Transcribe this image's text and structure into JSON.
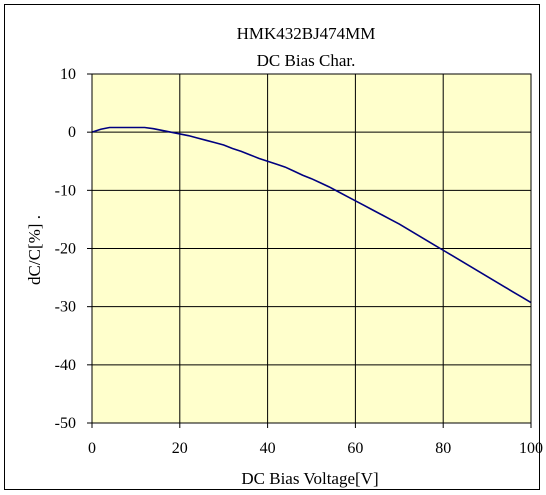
{
  "chart_data": {
    "type": "line",
    "title": "HMK432BJ474MM",
    "subtitle": "DC Bias Char.",
    "xlabel": "DC Bias Voltage[V]",
    "ylabel": "dC/C[%] .",
    "xlim": [
      0,
      100
    ],
    "ylim": [
      -50,
      10
    ],
    "x_ticks": [
      0,
      20,
      40,
      60,
      80,
      100
    ],
    "y_ticks": [
      10,
      0,
      -10,
      -20,
      -30,
      -40,
      -50
    ],
    "x_tick_labels": [
      "0",
      "20",
      "40",
      "60",
      "80",
      "100"
    ],
    "y_tick_labels": [
      "10",
      "0",
      "-10",
      "-20",
      "-30",
      "-40",
      "-50"
    ],
    "grid": true,
    "plot_background": "#ffffcc",
    "line_color": "#000080",
    "series": [
      {
        "x": [
          0,
          2,
          4,
          6,
          8,
          10,
          12,
          14,
          16,
          18,
          20,
          22,
          24,
          26,
          28,
          30,
          32,
          34,
          36,
          38,
          40,
          42,
          44,
          46,
          48,
          50,
          52,
          54,
          56,
          58,
          60,
          62,
          64,
          66,
          68,
          70,
          72,
          74,
          76,
          78,
          80,
          82,
          84,
          86,
          88,
          90,
          92,
          94,
          96,
          98,
          100
        ],
        "y": [
          0,
          0.5,
          0.8,
          0.8,
          0.8,
          0.8,
          0.8,
          0.6,
          0.3,
          0,
          -0.3,
          -0.6,
          -1.0,
          -1.4,
          -1.8,
          -2.2,
          -2.8,
          -3.3,
          -3.9,
          -4.5,
          -5.0,
          -5.5,
          -6.0,
          -6.7,
          -7.4,
          -8.0,
          -8.7,
          -9.4,
          -10.2,
          -11.0,
          -11.8,
          -12.6,
          -13.4,
          -14.2,
          -15.0,
          -15.8,
          -16.7,
          -17.6,
          -18.5,
          -19.4,
          -20.3,
          -21.2,
          -22.1,
          -23.0,
          -23.9,
          -24.8,
          -25.7,
          -26.6,
          -27.5,
          -28.4,
          -29.3
        ]
      }
    ]
  }
}
